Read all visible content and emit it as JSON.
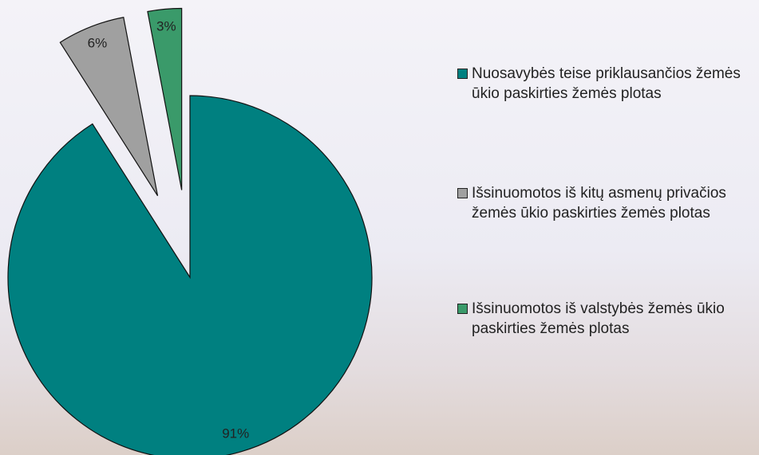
{
  "chart_data": {
    "type": "pie",
    "categories": [
      "Nuosavybės teise priklausančios žemės ūkio paskirties žemės plotas",
      "Išsinuomotos iš kitų asmenų privačios žemės ūkio paskirties žemės plotas",
      "Išsinuomotos iš valstybės žemės ūkio paskirties žemės plotas"
    ],
    "values": [
      91,
      6,
      3
    ],
    "value_labels": [
      "91%",
      "6%",
      "3%"
    ],
    "colors": [
      "#008080",
      "#a0a0a0",
      "#3a9a6a"
    ],
    "legend": "right"
  }
}
